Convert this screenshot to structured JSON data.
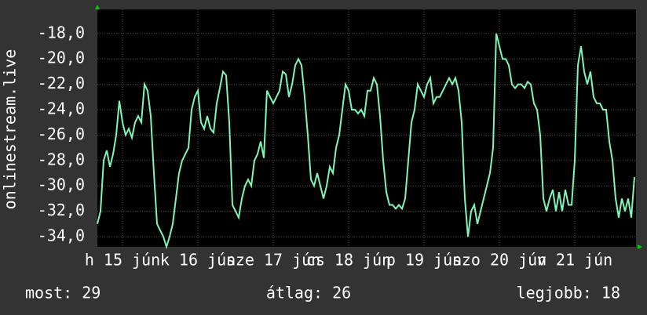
{
  "chart_data": {
    "type": "line",
    "y_label": "onlinestream.live",
    "x": [
      0,
      1,
      2,
      3,
      4,
      5,
      6,
      7,
      8,
      9,
      10,
      11,
      12,
      13,
      14,
      15,
      16,
      17,
      18,
      19,
      20,
      21,
      22,
      23,
      24,
      25,
      26,
      27,
      28,
      29,
      30,
      31,
      32,
      33,
      34,
      35,
      36,
      37,
      38,
      39,
      40,
      41,
      42,
      43,
      44,
      45,
      46,
      47,
      48,
      49,
      50,
      51,
      52,
      53,
      54,
      55,
      56,
      57,
      58,
      59,
      60,
      61,
      62,
      63,
      64,
      65,
      66,
      67,
      68,
      69,
      70,
      71,
      72,
      73,
      74,
      75,
      76,
      77,
      78,
      79,
      80,
      81,
      82,
      83,
      84,
      85,
      86,
      87,
      88,
      89,
      90,
      91,
      92,
      93,
      94,
      95,
      96,
      97,
      98,
      99,
      100,
      101,
      102,
      103,
      104,
      105,
      106,
      107,
      108,
      109,
      110,
      111,
      112,
      113,
      114,
      115,
      116,
      117,
      118,
      119,
      120,
      121,
      122,
      123,
      124,
      125,
      126,
      127,
      128,
      129,
      130,
      131,
      132,
      133,
      134,
      135,
      136,
      137,
      138,
      139,
      140,
      141,
      142,
      143,
      144,
      145,
      146,
      147,
      148,
      149,
      150,
      151,
      152,
      153,
      154,
      155,
      156,
      157,
      158,
      159,
      160,
      161,
      162,
      163,
      164,
      165,
      166,
      167,
      168,
      169,
      170,
      171
    ],
    "series": [
      {
        "color": "#7ff5b8",
        "values": [
          -33,
          -32,
          -28,
          -27.2,
          -28.5,
          -27.5,
          -26,
          -23.3,
          -25,
          -26,
          -25.5,
          -26.2,
          -25,
          -24.5,
          -25,
          -22,
          -22.5,
          -24.5,
          -29,
          -33,
          -33.5,
          -34,
          -34.8,
          -34,
          -33,
          -31,
          -29,
          -28,
          -27.5,
          -27,
          -24,
          -23,
          -22.5,
          -25,
          -25.5,
          -24.5,
          -25.5,
          -25.8,
          -23.5,
          -22.3,
          -21,
          -21.3,
          -25,
          -31.5,
          -32,
          -32.5,
          -31,
          -30,
          -29.5,
          -30,
          -28,
          -27.5,
          -26.5,
          -27.8,
          -22.5,
          -23,
          -23.5,
          -23,
          -22.5,
          -21,
          -21.2,
          -23,
          -22,
          -20.5,
          -20,
          -20.5,
          -23,
          -26,
          -29.5,
          -30,
          -29,
          -30,
          -31,
          -30,
          -28.5,
          -29,
          -27,
          -26,
          -24,
          -22,
          -22.5,
          -24,
          -24,
          -24.3,
          -24,
          -24.5,
          -22.5,
          -22.5,
          -21.5,
          -22,
          -24.5,
          -28,
          -30.5,
          -31.5,
          -31.5,
          -31.8,
          -31.5,
          -31.8,
          -31,
          -28,
          -25,
          -24,
          -22,
          -22.5,
          -23,
          -22,
          -21.5,
          -23.5,
          -23,
          -23,
          -22.5,
          -22,
          -21.5,
          -22,
          -21.5,
          -22.5,
          -25,
          -31,
          -34,
          -32,
          -31.5,
          -33,
          -32,
          -31,
          -30,
          -29,
          -27,
          -18,
          -19,
          -20,
          -20,
          -20.5,
          -22,
          -22.3,
          -22,
          -22,
          -22.3,
          -21.8,
          -22,
          -23.5,
          -24,
          -26,
          -31,
          -32,
          -31,
          -30.3,
          -32,
          -30.5,
          -32,
          -30.3,
          -31.5,
          -31.5,
          -28,
          -20.5,
          -19,
          -21,
          -22,
          -21,
          -23,
          -23.5,
          -23.5,
          -24,
          -24,
          -26.5,
          -28,
          -31,
          -32.5,
          -31,
          -32,
          -31,
          -32.5,
          -29.3
        ]
      }
    ],
    "xlim": [
      0,
      171.5
    ],
    "xticks": [
      {
        "value": 8,
        "label": "h 15 jún"
      },
      {
        "value": 32,
        "label": "k 16 jún"
      },
      {
        "value": 56,
        "label": "sze 17 jún"
      },
      {
        "value": 80,
        "label": "cs 18 jún"
      },
      {
        "value": 104,
        "label": "p 19 jún"
      },
      {
        "value": 128,
        "label": "szo 20 jún"
      },
      {
        "value": 152,
        "label": "v 21 jún"
      }
    ],
    "ylim": [
      -34.8,
      -16.1
    ],
    "yticks": [
      {
        "value": -34,
        "label": "-34,0"
      },
      {
        "value": -32,
        "label": "-32,0"
      },
      {
        "value": -30,
        "label": "-30,0"
      },
      {
        "value": -28,
        "label": "-28,0"
      },
      {
        "value": -26,
        "label": "-26,0"
      },
      {
        "value": -24,
        "label": "-24,0"
      },
      {
        "value": -22,
        "label": "-22,0"
      },
      {
        "value": -20,
        "label": "-20,0"
      },
      {
        "value": -18,
        "label": "-18,0"
      }
    ],
    "grid": true,
    "stats": [
      "most: 29",
      "átlag: 26",
      "legjobb: 18"
    ]
  }
}
